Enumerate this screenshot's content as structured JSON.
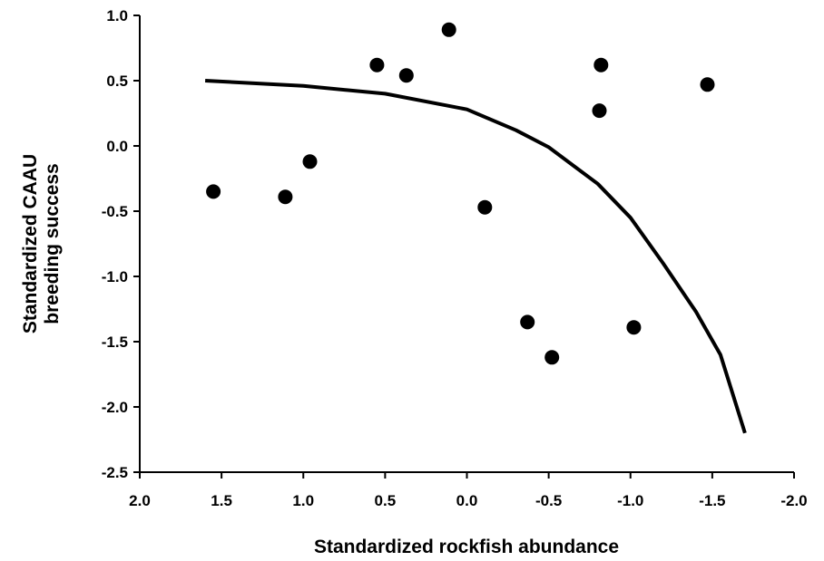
{
  "chart_data": {
    "type": "scatter",
    "title": "",
    "xlabel": "Standardized rockfish abundance",
    "ylabel_lines": [
      "Standardized CAAU",
      "breeding success"
    ],
    "x_reversed": true,
    "xlim": [
      2.0,
      -2.0
    ],
    "ylim": [
      -2.5,
      1.0
    ],
    "x_ticks": [
      2.0,
      1.5,
      1.0,
      0.5,
      0.0,
      -0.5,
      -1.0,
      -1.5,
      -2.0
    ],
    "x_tick_labels": [
      "2.0",
      "1.5",
      "1.0",
      "0.5",
      "0.0",
      "-0.5",
      "-1.0",
      "-1.5",
      "-2.0"
    ],
    "y_ticks": [
      1.0,
      0.5,
      0.0,
      -0.5,
      -1.0,
      -1.5,
      -2.0,
      -2.5
    ],
    "y_tick_labels": [
      "1.0",
      "0.5",
      "0.0",
      "-0.5",
      "-1.0",
      "-1.5",
      "-2.0",
      "-2.5"
    ],
    "grid": false,
    "legend": "none",
    "points": [
      {
        "x": 1.55,
        "y": -0.35
      },
      {
        "x": 1.11,
        "y": -0.39
      },
      {
        "x": 0.96,
        "y": -0.12
      },
      {
        "x": 0.55,
        "y": 0.62
      },
      {
        "x": 0.37,
        "y": 0.54
      },
      {
        "x": 0.11,
        "y": 0.89
      },
      {
        "x": -0.11,
        "y": -0.47
      },
      {
        "x": -0.37,
        "y": -1.35
      },
      {
        "x": -0.52,
        "y": -1.62
      },
      {
        "x": -0.82,
        "y": 0.62
      },
      {
        "x": -0.81,
        "y": 0.27
      },
      {
        "x": -1.02,
        "y": -1.39
      },
      {
        "x": -1.47,
        "y": 0.47
      }
    ],
    "fit_curve": {
      "x": [
        1.6,
        1.0,
        0.5,
        0.0,
        -0.3,
        -0.5,
        -0.8,
        -1.0,
        -1.2,
        -1.4,
        -1.55,
        -1.7
      ],
      "y": [
        0.5,
        0.46,
        0.4,
        0.28,
        0.12,
        -0.01,
        -0.29,
        -0.55,
        -0.9,
        -1.27,
        -1.6,
        -2.2
      ]
    },
    "colors": {
      "points": "#000000",
      "curve": "#000000",
      "axis": "#000000"
    }
  }
}
